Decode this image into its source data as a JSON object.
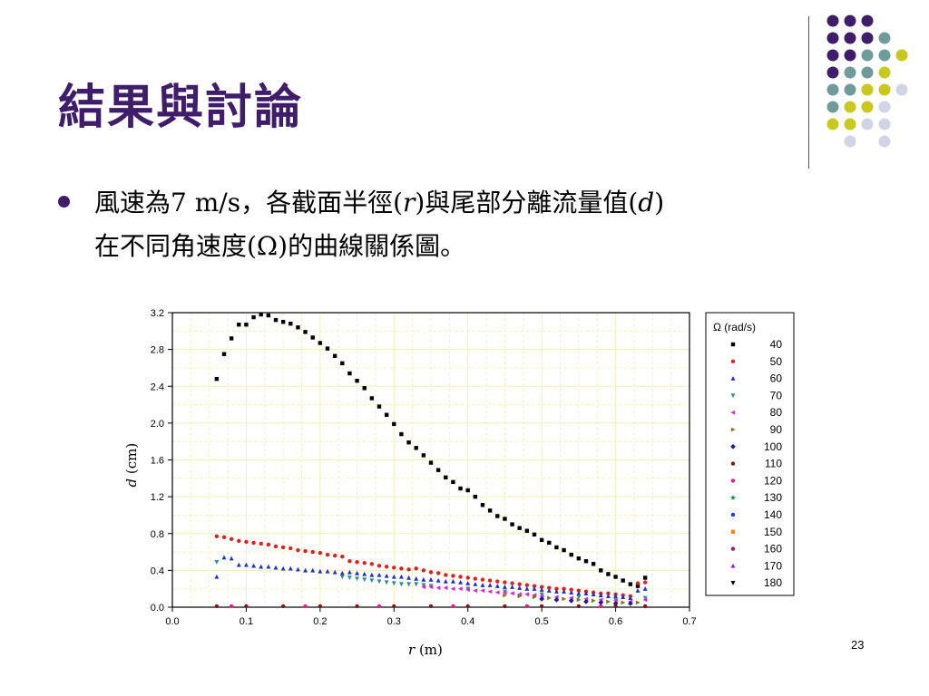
{
  "slide": {
    "title": "結果與討論",
    "bullet": {
      "seg1": "風速為7 m/s，各截面半徑(",
      "seg1_var": "r",
      "seg2": ")與尾部分離流量值(",
      "seg2_var": "d",
      "seg3": ")",
      "line2": "在不同角速度(Ω)的曲線關係圖。"
    },
    "page_number": "23",
    "colors": {
      "title": "#3f1d6b",
      "dot_purple": "#3f1d6b",
      "dot_teal": "#6f9c9a",
      "dot_yellow": "#c8c81e",
      "dot_lavender": "#d3d3e6"
    },
    "decor_dots": [
      [
        "purple",
        "purple",
        "purple",
        "",
        ""
      ],
      [
        "purple",
        "purple",
        "purple",
        "teal",
        ""
      ],
      [
        "purple",
        "purple",
        "teal",
        "teal",
        "yellow"
      ],
      [
        "purple",
        "teal",
        "teal",
        "yellow",
        ""
      ],
      [
        "teal",
        "teal",
        "yellow",
        "yellow",
        "lavender"
      ],
      [
        "teal",
        "yellow",
        "yellow",
        "lavender",
        ""
      ],
      [
        "yellow",
        "yellow",
        "lavender",
        "lavender",
        ""
      ],
      [
        "",
        "lavender",
        "",
        "lavender",
        ""
      ]
    ]
  },
  "chart_data": {
    "type": "scatter",
    "xlabel_var": "r",
    "xlabel_unit": "(m)",
    "ylabel_var": "d",
    "ylabel_unit": "(cm)",
    "xlim": [
      0.0,
      0.7
    ],
    "ylim": [
      0.0,
      3.2
    ],
    "x_ticks": [
      "0.0",
      "0.1",
      "0.2",
      "0.3",
      "0.4",
      "0.5",
      "0.6",
      "0.7"
    ],
    "y_ticks": [
      "0.0",
      "0.4",
      "0.8",
      "1.2",
      "1.6",
      "2.0",
      "2.4",
      "2.8",
      "3.2"
    ],
    "grid": true,
    "legend_position": "right",
    "legend_title": "Ω (rad/s)",
    "series": [
      {
        "name": "40",
        "color": "#000000",
        "marker": "square",
        "points": [
          [
            0.06,
            2.48
          ],
          [
            0.07,
            2.75
          ],
          [
            0.08,
            2.92
          ],
          [
            0.09,
            3.07
          ],
          [
            0.1,
            3.07
          ],
          [
            0.11,
            3.15
          ],
          [
            0.12,
            3.18
          ],
          [
            0.13,
            3.17
          ],
          [
            0.14,
            3.12
          ],
          [
            0.15,
            3.1
          ],
          [
            0.16,
            3.08
          ],
          [
            0.17,
            3.04
          ],
          [
            0.18,
            2.99
          ],
          [
            0.19,
            2.93
          ],
          [
            0.2,
            2.87
          ],
          [
            0.21,
            2.81
          ],
          [
            0.22,
            2.73
          ],
          [
            0.23,
            2.65
          ],
          [
            0.24,
            2.54
          ],
          [
            0.25,
            2.46
          ],
          [
            0.26,
            2.38
          ],
          [
            0.27,
            2.27
          ],
          [
            0.28,
            2.18
          ],
          [
            0.29,
            2.09
          ],
          [
            0.3,
            1.99
          ],
          [
            0.31,
            1.88
          ],
          [
            0.32,
            1.79
          ],
          [
            0.33,
            1.73
          ],
          [
            0.34,
            1.65
          ],
          [
            0.35,
            1.57
          ],
          [
            0.36,
            1.49
          ],
          [
            0.37,
            1.41
          ],
          [
            0.38,
            1.36
          ],
          [
            0.39,
            1.29
          ],
          [
            0.4,
            1.27
          ],
          [
            0.41,
            1.2
          ],
          [
            0.42,
            1.11
          ],
          [
            0.43,
            1.05
          ],
          [
            0.44,
            0.99
          ],
          [
            0.45,
            0.96
          ],
          [
            0.46,
            0.9
          ],
          [
            0.47,
            0.86
          ],
          [
            0.48,
            0.83
          ],
          [
            0.49,
            0.79
          ],
          [
            0.5,
            0.73
          ],
          [
            0.51,
            0.7
          ],
          [
            0.52,
            0.65
          ],
          [
            0.53,
            0.62
          ],
          [
            0.54,
            0.57
          ],
          [
            0.55,
            0.53
          ],
          [
            0.56,
            0.5
          ],
          [
            0.57,
            0.47
          ],
          [
            0.58,
            0.4
          ],
          [
            0.59,
            0.36
          ],
          [
            0.6,
            0.33
          ],
          [
            0.61,
            0.29
          ],
          [
            0.62,
            0.25
          ],
          [
            0.63,
            0.23
          ],
          [
            0.64,
            0.32
          ]
        ]
      },
      {
        "name": "50",
        "color": "#e0201c",
        "marker": "circle",
        "points": [
          [
            0.06,
            0.77
          ],
          [
            0.07,
            0.76
          ],
          [
            0.08,
            0.74
          ],
          [
            0.09,
            0.72
          ],
          [
            0.1,
            0.71
          ],
          [
            0.11,
            0.7
          ],
          [
            0.12,
            0.69
          ],
          [
            0.13,
            0.68
          ],
          [
            0.14,
            0.66
          ],
          [
            0.15,
            0.65
          ],
          [
            0.16,
            0.64
          ],
          [
            0.17,
            0.62
          ],
          [
            0.18,
            0.61
          ],
          [
            0.19,
            0.6
          ],
          [
            0.2,
            0.59
          ],
          [
            0.21,
            0.57
          ],
          [
            0.22,
            0.56
          ],
          [
            0.23,
            0.55
          ],
          [
            0.24,
            0.5
          ],
          [
            0.25,
            0.49
          ],
          [
            0.26,
            0.48
          ],
          [
            0.27,
            0.47
          ],
          [
            0.28,
            0.45
          ],
          [
            0.29,
            0.44
          ],
          [
            0.3,
            0.43
          ],
          [
            0.31,
            0.42
          ],
          [
            0.32,
            0.41
          ],
          [
            0.33,
            0.42
          ],
          [
            0.34,
            0.4
          ],
          [
            0.35,
            0.38
          ],
          [
            0.36,
            0.37
          ],
          [
            0.37,
            0.35
          ],
          [
            0.38,
            0.34
          ],
          [
            0.39,
            0.33
          ],
          [
            0.4,
            0.32
          ],
          [
            0.41,
            0.31
          ],
          [
            0.42,
            0.3
          ],
          [
            0.43,
            0.29
          ],
          [
            0.44,
            0.28
          ],
          [
            0.45,
            0.27
          ],
          [
            0.46,
            0.26
          ],
          [
            0.47,
            0.25
          ],
          [
            0.48,
            0.24
          ],
          [
            0.49,
            0.23
          ],
          [
            0.5,
            0.22
          ],
          [
            0.51,
            0.21
          ],
          [
            0.52,
            0.2
          ],
          [
            0.53,
            0.2
          ],
          [
            0.54,
            0.19
          ],
          [
            0.55,
            0.18
          ],
          [
            0.56,
            0.17
          ],
          [
            0.57,
            0.16
          ],
          [
            0.58,
            0.15
          ],
          [
            0.59,
            0.15
          ],
          [
            0.6,
            0.14
          ],
          [
            0.61,
            0.13
          ],
          [
            0.62,
            0.12
          ],
          [
            0.63,
            0.26
          ],
          [
            0.64,
            0.27
          ]
        ]
      },
      {
        "name": "60",
        "color": "#1c2fd0",
        "marker": "triangle-up",
        "points": [
          [
            0.06,
            0.33
          ],
          [
            0.07,
            0.54
          ],
          [
            0.08,
            0.53
          ],
          [
            0.09,
            0.46
          ],
          [
            0.1,
            0.46
          ],
          [
            0.11,
            0.45
          ],
          [
            0.12,
            0.44
          ],
          [
            0.13,
            0.44
          ],
          [
            0.14,
            0.43
          ],
          [
            0.15,
            0.42
          ],
          [
            0.16,
            0.42
          ],
          [
            0.17,
            0.41
          ],
          [
            0.18,
            0.4
          ],
          [
            0.19,
            0.4
          ],
          [
            0.2,
            0.39
          ],
          [
            0.21,
            0.39
          ],
          [
            0.22,
            0.38
          ],
          [
            0.23,
            0.37
          ],
          [
            0.24,
            0.38
          ],
          [
            0.25,
            0.37
          ],
          [
            0.26,
            0.36
          ],
          [
            0.27,
            0.35
          ],
          [
            0.28,
            0.35
          ],
          [
            0.29,
            0.34
          ],
          [
            0.3,
            0.33
          ],
          [
            0.31,
            0.33
          ],
          [
            0.32,
            0.32
          ],
          [
            0.33,
            0.31
          ],
          [
            0.34,
            0.3
          ],
          [
            0.35,
            0.3
          ],
          [
            0.36,
            0.29
          ],
          [
            0.37,
            0.28
          ],
          [
            0.38,
            0.28
          ],
          [
            0.39,
            0.27
          ],
          [
            0.4,
            0.26
          ],
          [
            0.41,
            0.25
          ],
          [
            0.42,
            0.24
          ],
          [
            0.43,
            0.24
          ],
          [
            0.44,
            0.23
          ],
          [
            0.45,
            0.22
          ],
          [
            0.46,
            0.22
          ],
          [
            0.47,
            0.21
          ],
          [
            0.48,
            0.2
          ],
          [
            0.49,
            0.2
          ],
          [
            0.5,
            0.19
          ],
          [
            0.51,
            0.18
          ],
          [
            0.52,
            0.17
          ],
          [
            0.53,
            0.17
          ],
          [
            0.54,
            0.16
          ],
          [
            0.55,
            0.15
          ],
          [
            0.56,
            0.15
          ],
          [
            0.57,
            0.14
          ],
          [
            0.58,
            0.13
          ],
          [
            0.59,
            0.12
          ],
          [
            0.6,
            0.12
          ],
          [
            0.61,
            0.11
          ],
          [
            0.62,
            0.1
          ],
          [
            0.63,
            0.18
          ],
          [
            0.64,
            0.2
          ]
        ]
      },
      {
        "name": "70",
        "color": "#2b8f8a",
        "marker": "triangle-down",
        "points": [
          [
            0.06,
            0.49
          ],
          [
            0.23,
            0.33
          ],
          [
            0.24,
            0.32
          ],
          [
            0.25,
            0.31
          ],
          [
            0.26,
            0.3
          ],
          [
            0.27,
            0.29
          ],
          [
            0.28,
            0.28
          ],
          [
            0.29,
            0.27
          ],
          [
            0.3,
            0.26
          ],
          [
            0.31,
            0.25
          ],
          [
            0.32,
            0.25
          ],
          [
            0.33,
            0.25
          ],
          [
            0.34,
            0.24
          ],
          [
            0.35,
            0.23
          ],
          [
            0.4,
            0.2
          ],
          [
            0.45,
            0.17
          ],
          [
            0.5,
            0.14
          ],
          [
            0.55,
            0.11
          ],
          [
            0.6,
            0.08
          ],
          [
            0.64,
            0.1
          ]
        ]
      },
      {
        "name": "80",
        "color": "#e020e0",
        "marker": "triangle-left",
        "points": [
          [
            0.34,
            0.22
          ],
          [
            0.35,
            0.22
          ],
          [
            0.36,
            0.21
          ],
          [
            0.37,
            0.21
          ],
          [
            0.38,
            0.2
          ],
          [
            0.39,
            0.2
          ],
          [
            0.4,
            0.19
          ],
          [
            0.41,
            0.18
          ],
          [
            0.42,
            0.18
          ],
          [
            0.43,
            0.17
          ],
          [
            0.44,
            0.16
          ],
          [
            0.45,
            0.16
          ],
          [
            0.46,
            0.15
          ],
          [
            0.47,
            0.14
          ],
          [
            0.48,
            0.14
          ],
          [
            0.49,
            0.13
          ],
          [
            0.5,
            0.12
          ],
          [
            0.52,
            0.11
          ],
          [
            0.54,
            0.1
          ],
          [
            0.56,
            0.09
          ],
          [
            0.58,
            0.08
          ],
          [
            0.6,
            0.07
          ],
          [
            0.62,
            0.06
          ],
          [
            0.64,
            0.08
          ]
        ]
      },
      {
        "name": "90",
        "color": "#7a7a1c",
        "marker": "triangle-right",
        "points": [
          [
            0.45,
            0.13
          ],
          [
            0.47,
            0.12
          ],
          [
            0.49,
            0.11
          ],
          [
            0.51,
            0.1
          ],
          [
            0.53,
            0.09
          ],
          [
            0.55,
            0.08
          ],
          [
            0.57,
            0.07
          ],
          [
            0.59,
            0.06
          ],
          [
            0.61,
            0.05
          ],
          [
            0.63,
            0.05
          ]
        ]
      },
      {
        "name": "100",
        "color": "#1c1c8a",
        "marker": "diamond",
        "points": [
          [
            0.5,
            0.09
          ],
          [
            0.52,
            0.08
          ],
          [
            0.54,
            0.07
          ],
          [
            0.56,
            0.06
          ],
          [
            0.58,
            0.05
          ],
          [
            0.6,
            0.04
          ],
          [
            0.62,
            0.04
          ]
        ]
      },
      {
        "name": "110",
        "color": "#7a1c1c",
        "marker": "circle",
        "points": [
          [
            0.06,
            0.01
          ],
          [
            0.1,
            0.01
          ],
          [
            0.15,
            0.01
          ],
          [
            0.2,
            0.01
          ],
          [
            0.25,
            0.01
          ],
          [
            0.3,
            0.01
          ],
          [
            0.35,
            0.01
          ],
          [
            0.4,
            0.01
          ],
          [
            0.45,
            0.01
          ],
          [
            0.5,
            0.01
          ],
          [
            0.55,
            0.01
          ],
          [
            0.6,
            0.01
          ],
          [
            0.64,
            0.01
          ]
        ]
      },
      {
        "name": "120",
        "color": "#e01c8a",
        "marker": "circle",
        "points": [
          [
            0.08,
            0.01
          ],
          [
            0.18,
            0.01
          ],
          [
            0.28,
            0.01
          ],
          [
            0.38,
            0.01
          ],
          [
            0.48,
            0.01
          ],
          [
            0.58,
            0.01
          ]
        ]
      },
      {
        "name": "130",
        "color": "#1c8a3a",
        "marker": "star",
        "points": []
      },
      {
        "name": "140",
        "color": "#1c3ae0",
        "marker": "circle-half",
        "points": []
      },
      {
        "name": "150",
        "color": "#f08a1c",
        "marker": "square",
        "points": []
      },
      {
        "name": "160",
        "color": "#8a1c8a",
        "marker": "circle",
        "points": []
      },
      {
        "name": "170",
        "color": "#8a1cf0",
        "marker": "triangle-up",
        "points": []
      },
      {
        "name": "180",
        "color": "#000000",
        "marker": "triangle-down",
        "points": []
      }
    ]
  }
}
